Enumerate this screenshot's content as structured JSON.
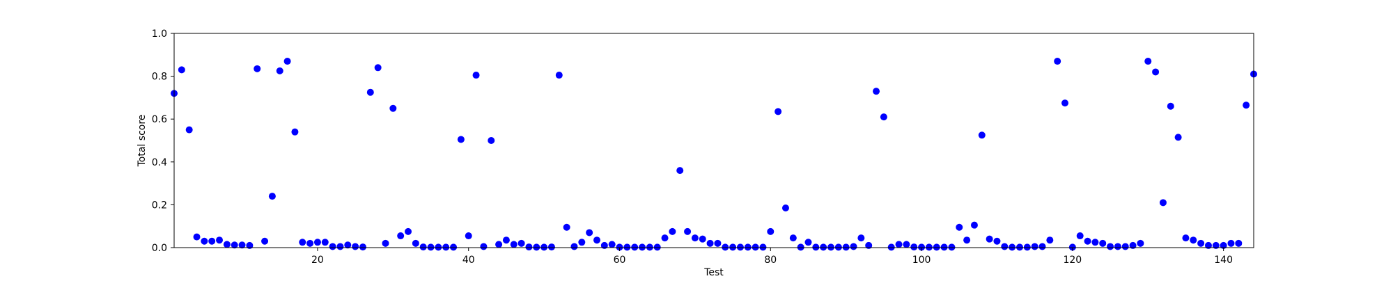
{
  "chart_data": {
    "type": "scatter",
    "title": "",
    "xlabel": "Test",
    "ylabel": "Total score",
    "xlim": [
      1,
      144
    ],
    "ylim": [
      0.0,
      1.0
    ],
    "x_ticks": [
      20,
      40,
      60,
      80,
      100,
      120,
      140
    ],
    "y_ticks": [
      0.0,
      0.2,
      0.4,
      0.6,
      0.8,
      1.0
    ],
    "x_tick_labels": [
      "20",
      "40",
      "60",
      "80",
      "100",
      "120",
      "140"
    ],
    "y_tick_labels": [
      "0.0",
      "0.2",
      "0.4",
      "0.6",
      "0.8",
      "1.0"
    ],
    "grid": false,
    "marker_color": "#0000ff",
    "series": [
      {
        "x": [
          1,
          2,
          3,
          4,
          5,
          6,
          7,
          8,
          9,
          10,
          11,
          12,
          13,
          14,
          15,
          16,
          17,
          18,
          19,
          20,
          21,
          22,
          23,
          24,
          25,
          26,
          27,
          28,
          29,
          30,
          31,
          32,
          33,
          34,
          35,
          36,
          37,
          38,
          39,
          40,
          41,
          42,
          43,
          44,
          45,
          46,
          47,
          48,
          49,
          50,
          51,
          52,
          53,
          54,
          55,
          56,
          57,
          58,
          59,
          60,
          61,
          62,
          63,
          64,
          65,
          66,
          67,
          68,
          69,
          70,
          71,
          72,
          73,
          74,
          75,
          76,
          77,
          78,
          79,
          80,
          81,
          82,
          83,
          84,
          85,
          86,
          87,
          88,
          89,
          90,
          91,
          92,
          93,
          94,
          95,
          96,
          97,
          98,
          99,
          100,
          101,
          102,
          103,
          104,
          105,
          106,
          107,
          108,
          109,
          110,
          111,
          112,
          113,
          114,
          115,
          116,
          117,
          118,
          119,
          120,
          121,
          122,
          123,
          124,
          125,
          126,
          127,
          128,
          129,
          130,
          131,
          132,
          133,
          134,
          135,
          136,
          137,
          138,
          139,
          140,
          141,
          142,
          143,
          144
        ],
        "y": [
          0.72,
          0.83,
          0.55,
          0.05,
          0.03,
          0.03,
          0.035,
          0.015,
          0.012,
          0.012,
          0.01,
          0.835,
          0.03,
          0.24,
          0.825,
          0.87,
          0.54,
          0.025,
          0.02,
          0.025,
          0.025,
          0.005,
          0.005,
          0.012,
          0.005,
          0.003,
          0.725,
          0.84,
          0.02,
          0.65,
          0.055,
          0.075,
          0.02,
          0.003,
          0.002,
          0.002,
          0.002,
          0.002,
          0.505,
          0.055,
          0.805,
          0.005,
          0.5,
          0.015,
          0.035,
          0.015,
          0.02,
          0.003,
          0.002,
          0.002,
          0.003,
          0.805,
          0.095,
          0.005,
          0.025,
          0.07,
          0.035,
          0.01,
          0.015,
          0.002,
          0.002,
          0.002,
          0.002,
          0.002,
          0.002,
          0.045,
          0.075,
          0.36,
          0.075,
          0.045,
          0.04,
          0.02,
          0.02,
          0.002,
          0.002,
          0.002,
          0.002,
          0.002,
          0.002,
          0.075,
          0.635,
          0.185,
          0.045,
          0.002,
          0.025,
          0.002,
          0.002,
          0.002,
          0.002,
          0.002,
          0.005,
          0.045,
          0.01,
          0.73,
          0.61,
          0.002,
          0.015,
          0.015,
          0.003,
          0.002,
          0.002,
          0.002,
          0.002,
          0.002,
          0.095,
          0.035,
          0.105,
          0.525,
          0.04,
          0.03,
          0.005,
          0.002,
          0.002,
          0.002,
          0.005,
          0.005,
          0.035,
          0.87,
          0.675,
          0.002,
          0.055,
          0.03,
          0.025,
          0.02,
          0.005,
          0.005,
          0.005,
          0.01,
          0.02,
          0.87,
          0.82,
          0.21,
          0.66,
          0.515,
          0.045,
          0.035,
          0.02,
          0.01,
          0.01,
          0.01,
          0.02,
          0.02,
          0.665,
          0.81
        ]
      }
    ]
  }
}
